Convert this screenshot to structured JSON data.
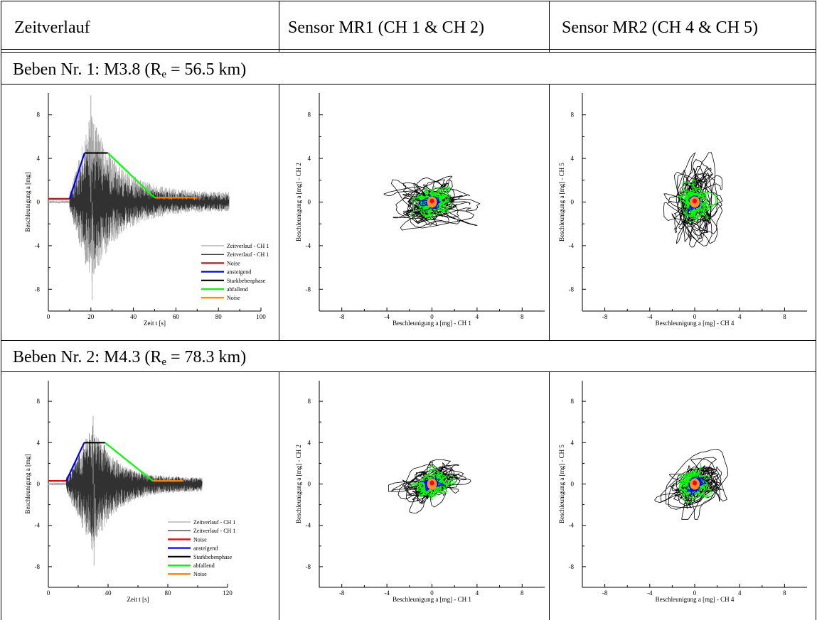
{
  "header": {
    "col1": "Zeitverlauf",
    "col2": "Sensor MR1 (CH 1 & CH 2)",
    "col3": "Sensor MR2 (CH 4 & CH 5)"
  },
  "quakes": [
    {
      "label_prefix": "Beben Nr. 1: M3.8 (R",
      "label_sub": "e",
      "label_suffix": " = 56.5 km)"
    },
    {
      "label_prefix": "Beben Nr. 2: M4.3 (R",
      "label_sub": "e",
      "label_suffix": " = 78.3 km)"
    }
  ],
  "colors": {
    "ch1_gray": "#a6a6a6",
    "ch1_black": "#000000",
    "noise": "#ff0000",
    "ansteigend": "#0000ff",
    "starkbebenphase": "#000000",
    "abfallend": "#00ff00",
    "noise_end": "#ff8000",
    "core_orange": "#ff8c2a",
    "core_red": "#ff0000"
  },
  "chart_data": [
    {
      "type": "line",
      "panel": "quake1-time",
      "xlabel": "Zeit t [s]",
      "ylabel": "Beschleunigung a [mg]",
      "xlim": [
        0,
        100
      ],
      "ylim": [
        -10,
        10
      ],
      "xticks": [
        0,
        20,
        40,
        60,
        80,
        100
      ],
      "yticks": [
        -8,
        -4,
        0,
        4,
        8
      ],
      "signal": {
        "start": 10,
        "end": 85,
        "peak_time": 20,
        "peak_pos": 9.8,
        "peak_neg": -9.0
      },
      "envelope": {
        "noise": [
          [
            0,
            0.3
          ],
          [
            10,
            0.3
          ]
        ],
        "ansteigend": [
          [
            10,
            0.3
          ],
          [
            17,
            4.5
          ]
        ],
        "starkbebenphase": [
          [
            17,
            4.5
          ],
          [
            28,
            4.5
          ]
        ],
        "abfallend": [
          [
            28,
            4.5
          ],
          [
            50,
            0.4
          ]
        ],
        "noise_end": [
          [
            50,
            0.4
          ],
          [
            70,
            0.4
          ]
        ]
      },
      "legend": [
        "Zeitverlauf - CH 1",
        "Zeitverlauf - CH 1",
        "Noise",
        "ansteigend",
        "Starkbebenphase",
        "abfallend",
        "Noise"
      ],
      "legend_placement": "bottom-right"
    },
    {
      "type": "scatter",
      "panel": "quake1-mr1",
      "xlabel": "Beschleunigung a [mg] - CH 1",
      "ylabel": "Beschleunigung a [mg] - CH 2",
      "xlim": [
        -10,
        10
      ],
      "ylim": [
        -10,
        10
      ],
      "xticks": [
        -8,
        -4,
        0,
        4,
        8
      ],
      "yticks": [
        -8,
        -4,
        0,
        4,
        8
      ],
      "black_extent": [
        6.0,
        3.6
      ],
      "green_extent": [
        2.6,
        1.9
      ],
      "blue_extent": [
        1.1,
        0.8
      ],
      "corr": 0.15
    },
    {
      "type": "scatter",
      "panel": "quake1-mr2",
      "xlabel": "Beschleunigung a [mg] - CH 4",
      "ylabel": "Beschleunigung a [mg] - CH 5",
      "xlim": [
        -10,
        10
      ],
      "ylim": [
        -10,
        10
      ],
      "xticks": [
        -8,
        -4,
        0,
        4,
        8
      ],
      "yticks": [
        -8,
        -4,
        0,
        4,
        8
      ],
      "black_extent": [
        3.6,
        6.0
      ],
      "green_extent": [
        2.2,
        2.4
      ],
      "blue_extent": [
        0.8,
        1.0
      ],
      "corr": 0.1
    },
    {
      "type": "line",
      "panel": "quake2-time",
      "xlabel": "Zeit t [s]",
      "ylabel": "Beschleunigung a [mg]",
      "xlim": [
        0,
        120
      ],
      "ylim": [
        -10,
        10
      ],
      "xticks": [
        0,
        40,
        80,
        120
      ],
      "yticks": [
        -8,
        -4,
        0,
        4,
        8
      ],
      "signal": {
        "start": 12,
        "end": 103,
        "peak_time": 30,
        "peak_pos": 6.6,
        "peak_neg": -7.9
      },
      "envelope": {
        "noise": [
          [
            0,
            0.3
          ],
          [
            12,
            0.3
          ]
        ],
        "ansteigend": [
          [
            12,
            0.3
          ],
          [
            24,
            4.0
          ]
        ],
        "starkbebenphase": [
          [
            24,
            4.0
          ],
          [
            38,
            4.0
          ]
        ],
        "abfallend": [
          [
            38,
            4.0
          ],
          [
            70,
            0.3
          ]
        ],
        "noise_end": [
          [
            70,
            0.3
          ],
          [
            90,
            0.3
          ]
        ]
      },
      "legend": [
        "Zeitverlauf - CH 1",
        "Zeitverlauf - CH 1",
        "Noise",
        "ansteigend",
        "Starkbebenphase",
        "abfallend",
        "Noise"
      ],
      "legend_placement": "bottom-right"
    },
    {
      "type": "scatter",
      "panel": "quake2-mr1",
      "xlabel": "Beschleunigung a [mg] - CH 1",
      "ylabel": "Beschleunigung a [mg] - CH 2",
      "xlim": [
        -10,
        10
      ],
      "ylim": [
        -10,
        10
      ],
      "xticks": [
        -8,
        -4,
        0,
        4,
        8
      ],
      "yticks": [
        -8,
        -4,
        0,
        4,
        8
      ],
      "black_extent": [
        4.5,
        3.5
      ],
      "green_extent": [
        2.4,
        2.0
      ],
      "blue_extent": [
        1.1,
        0.9
      ],
      "corr": 0.45
    },
    {
      "type": "scatter",
      "panel": "quake2-mr2",
      "xlabel": "Beschleunigung a [mg] - CH 4",
      "ylabel": "Beschleunigung a [mg] - CH 5",
      "xlim": [
        -10,
        10
      ],
      "ylim": [
        -10,
        10
      ],
      "xticks": [
        -8,
        -4,
        0,
        4,
        8
      ],
      "yticks": [
        -8,
        -4,
        0,
        4,
        8
      ],
      "black_extent": [
        4.2,
        4.0
      ],
      "green_extent": [
        2.2,
        2.3
      ],
      "blue_extent": [
        1.0,
        1.2
      ],
      "corr": 0.55
    }
  ]
}
